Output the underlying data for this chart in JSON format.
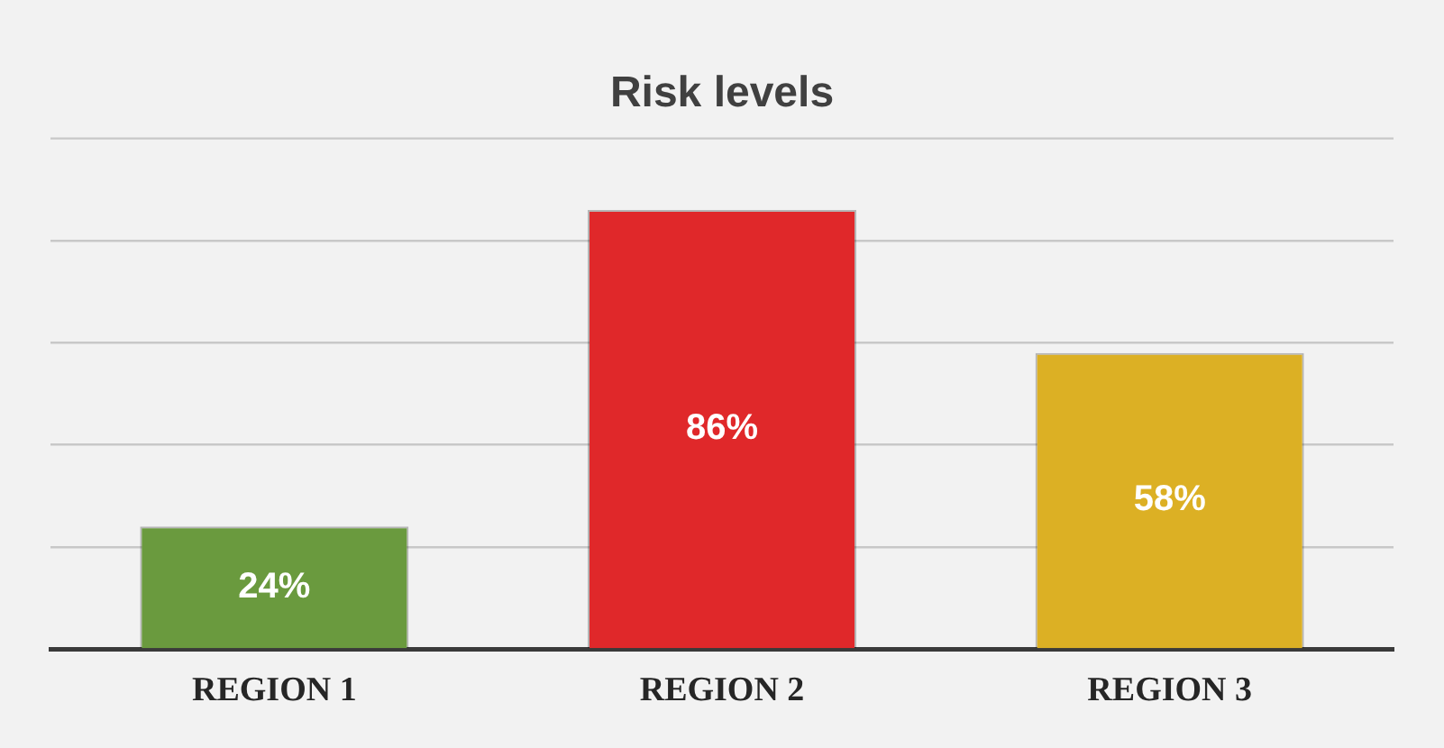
{
  "chart_data": {
    "type": "bar",
    "title": "Risk levels",
    "categories": [
      "REGION 1",
      "REGION 2",
      "REGION 3"
    ],
    "values": [
      24,
      86,
      58
    ],
    "colors": [
      "#6a9a3e",
      "#e0282a",
      "#dcb024"
    ],
    "value_labels": [
      "24%",
      "86%",
      "58%"
    ],
    "ylim": [
      0,
      100
    ],
    "yticks": [
      {
        "value": 0,
        "label": null
      },
      {
        "value": 20,
        "label": null
      },
      {
        "value": 40,
        "label": null
      },
      {
        "value": 60,
        "label": null
      },
      {
        "value": 80,
        "label": null
      }
    ],
    "grid": "y",
    "tick_labels": "x",
    "legend": false
  }
}
